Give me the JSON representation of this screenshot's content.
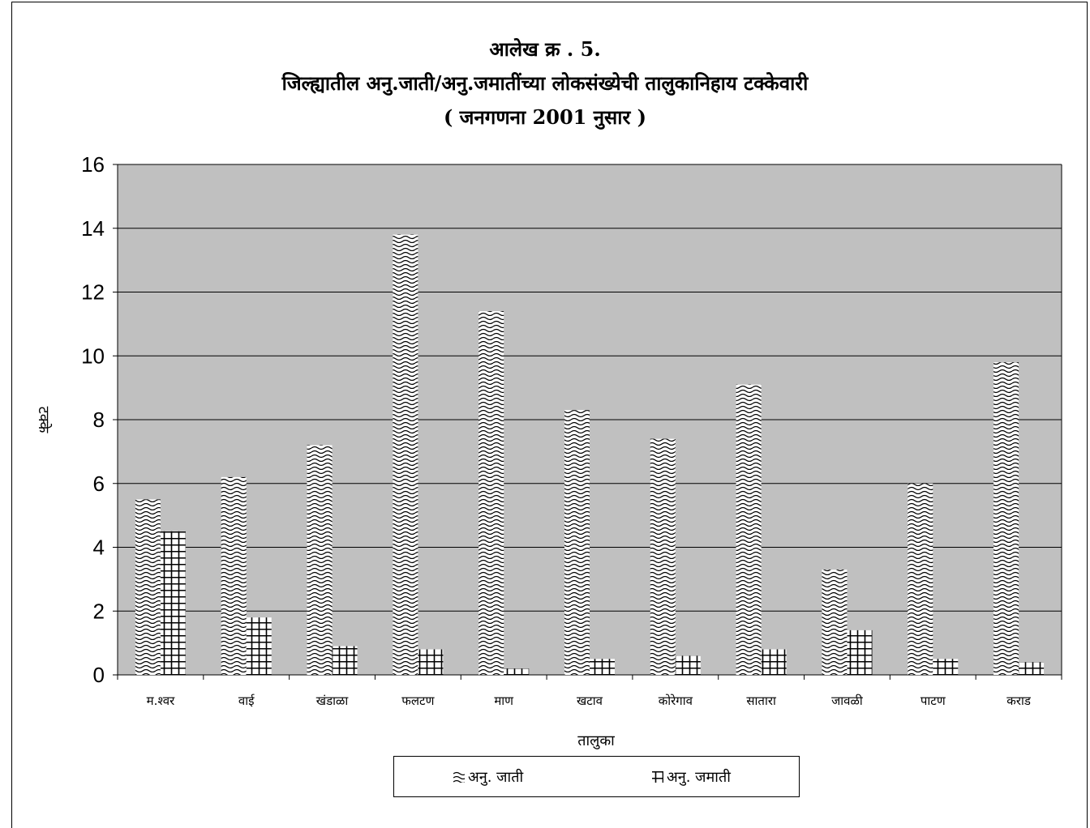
{
  "chart_data": {
    "type": "bar",
    "title": "आलेख क्र . 5.",
    "subtitle": "जिल्ह्यातील अनु.जाती/अनु.जमातींच्या लोकसंख्येची तालुकानिहाय टक्केवारी",
    "subtitle2": "( जनगणना 2001 नुसार )",
    "xlabel": "तालुका",
    "ylabel": "टक्के",
    "ylim": [
      0,
      16
    ],
    "yticks": [
      "0",
      "2",
      "4",
      "6",
      "8",
      "10",
      "12",
      "14",
      "16"
    ],
    "categories": [
      "म.श्वर",
      "वाई",
      "खंडाळा",
      "फलटण",
      "माण",
      "खटाव",
      "कोरेगाव",
      "सातारा",
      "जावळी",
      "पाटण",
      "कराड"
    ],
    "series": [
      {
        "name": "अनु. जाती",
        "values": [
          5.5,
          6.2,
          7.2,
          13.8,
          11.4,
          8.3,
          7.4,
          9.1,
          3.3,
          6.0,
          9.8
        ]
      },
      {
        "name": "अनु. जमाती",
        "values": [
          4.5,
          1.8,
          0.9,
          0.8,
          0.2,
          0.5,
          0.6,
          0.8,
          1.4,
          0.5,
          0.4
        ]
      }
    ],
    "grid": true,
    "legend_position": "bottom",
    "colors": {
      "plot_bg": "#c0c0c0",
      "bar_bg": "#ffffff",
      "pattern": "#000000"
    }
  }
}
